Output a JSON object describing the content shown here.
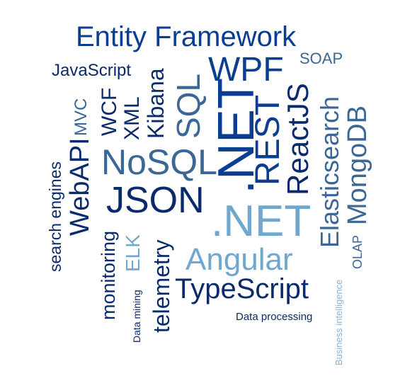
{
  "words": [
    {
      "text": "Entity Framework",
      "color": "#0b3d91"
    },
    {
      "text": "WPF",
      "color": "#0b3d91"
    },
    {
      "text": "SOAP",
      "color": "#3a6796"
    },
    {
      "text": "JavaScript",
      "color": "#0a2a6b"
    },
    {
      "text": "SQL",
      "color": "#3a6796"
    },
    {
      "text": ".NET",
      "color": "#0b3d91"
    },
    {
      "text": "REST",
      "color": "#0b3d91"
    },
    {
      "text": "ReactJS",
      "color": "#0a2a6b"
    },
    {
      "text": "MVC",
      "color": "#3a6796"
    },
    {
      "text": "WCF",
      "color": "#0a2a6b"
    },
    {
      "text": "XML",
      "color": "#0a2a6b"
    },
    {
      "text": "Kibana",
      "color": "#0a2a6b"
    },
    {
      "text": "NoSQL",
      "color": "#3a6796"
    },
    {
      "text": "Elasticsearch",
      "color": "#3a6796"
    },
    {
      "text": "MongoDB",
      "color": "#3a6796"
    },
    {
      "text": "search engines",
      "color": "#0a2a6b"
    },
    {
      "text": "WebAPI",
      "color": "#0a2a6b"
    },
    {
      "text": "JSON",
      "color": "#0a2a6b"
    },
    {
      "text": ".NET",
      "color": "#6fa7cf"
    },
    {
      "text": "monitoring",
      "color": "#0a2a6b"
    },
    {
      "text": "ELK",
      "color": "#6fa7cf"
    },
    {
      "text": "telemetry",
      "color": "#0a2a6b"
    },
    {
      "text": "Angular",
      "color": "#6fa7cf"
    },
    {
      "text": "OLAP",
      "color": "#3a6796"
    },
    {
      "text": "TypeScript",
      "color": "#0a2a6b"
    },
    {
      "text": "Data mining",
      "color": "#0a2a6b"
    },
    {
      "text": "Data processing",
      "color": "#0a2a6b"
    },
    {
      "text": "Business intelligence",
      "color": "#86b6d9"
    }
  ]
}
